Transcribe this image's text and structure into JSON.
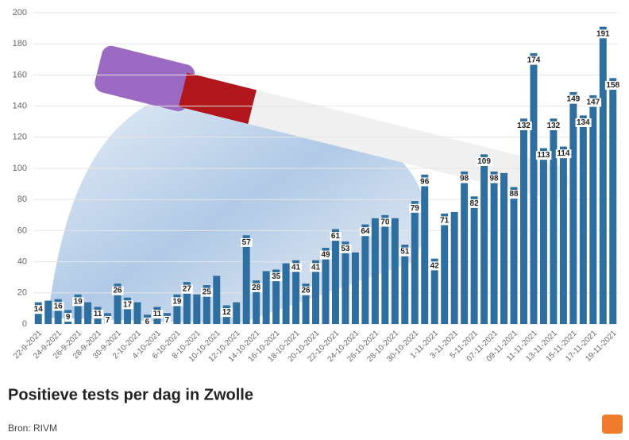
{
  "chart_data": {
    "type": "bar",
    "title": "Positieve tests per dag in Zwolle",
    "source": "Bron: RIVM",
    "categories": [
      "22-9-2021",
      null,
      "24-9-2021",
      null,
      "26-9-2021",
      null,
      "28-9-2021",
      null,
      "30-9-2021",
      null,
      "2-10-2021",
      null,
      "4-10-2021",
      null,
      "6-10-2021",
      null,
      "8-10-2021",
      null,
      "10-10-2021",
      null,
      "12-10-2021",
      null,
      "14-10-2021",
      null,
      "16-10-2021",
      null,
      "18-10-2021",
      null,
      "20-10-2021",
      null,
      "22-10-2021",
      null,
      "24-10-2021",
      null,
      "26-10-2021",
      null,
      "28-10-2021",
      null,
      "30-10-2021",
      null,
      "1-11-2021",
      null,
      "3-11-2021",
      null,
      "5-11-2021",
      null,
      "07-11-2021",
      null,
      "09-11-2021",
      null,
      "11-11-2021",
      null,
      "13-11-2021",
      null,
      "15-11-2021",
      null,
      "17-11-2021",
      null,
      "19-11-2021"
    ],
    "values": [
      14,
      15,
      16,
      9,
      19,
      14,
      11,
      7,
      26,
      17,
      14,
      6,
      11,
      7,
      19,
      27,
      19,
      25,
      31,
      12,
      14,
      57,
      28,
      34,
      35,
      39,
      41,
      26,
      41,
      49,
      61,
      53,
      46,
      64,
      68,
      70,
      68,
      51,
      79,
      96,
      42,
      71,
      72,
      98,
      82,
      109,
      98,
      97,
      88,
      132,
      174,
      113,
      132,
      114,
      149,
      134,
      147,
      191,
      158
    ],
    "value_labels": [
      14,
      null,
      16,
      9,
      19,
      null,
      11,
      7,
      26,
      17,
      null,
      6,
      11,
      7,
      19,
      27,
      null,
      25,
      null,
      12,
      null,
      57,
      28,
      null,
      35,
      null,
      41,
      26,
      41,
      49,
      61,
      53,
      null,
      64,
      null,
      70,
      null,
      51,
      79,
      96,
      42,
      71,
      null,
      98,
      82,
      109,
      98,
      null,
      88,
      132,
      174,
      113,
      132,
      114,
      149,
      134,
      147,
      191,
      158
    ],
    "color": "#2f6f9f",
    "ylim": [
      0,
      200
    ],
    "yticks": [
      0,
      20,
      40,
      60,
      80,
      100,
      120,
      140,
      160,
      180,
      200
    ],
    "grid": true
  }
}
